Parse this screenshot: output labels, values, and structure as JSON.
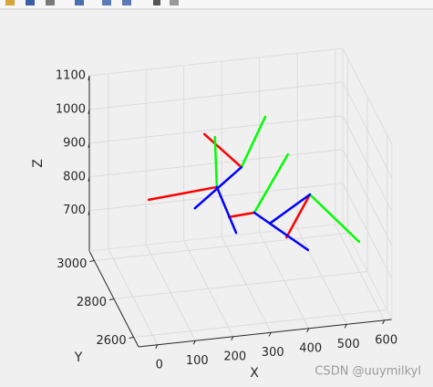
{
  "chart_data": {
    "type": "line3d",
    "xlabel": "X",
    "ylabel": "Y",
    "zlabel": "Z",
    "xlim": [
      -50,
      620
    ],
    "ylim": [
      2550,
      3050
    ],
    "zlim": [
      580,
      1100
    ],
    "xticks": [
      0,
      100,
      200,
      300,
      400,
      500,
      600
    ],
    "yticks": [
      2600,
      2800,
      3000
    ],
    "zticks": [
      700,
      800,
      900,
      1000,
      1100
    ],
    "grid": true,
    "series": [
      {
        "color": "#ff0000",
        "x": [
          287,
          189,
          null,
          222,
          42,
          null,
          321,
          254,
          null,
          468,
          406
        ],
        "y": [
          2800,
          2800,
          null,
          2800,
          2800,
          null,
          2800,
          2800,
          null,
          2800,
          2800
        ],
        "z": [
          930,
          1040,
          null,
          879,
          863,
          null,
          791,
          786,
          null,
          827,
          707
        ]
      },
      {
        "color": "#00ff00",
        "x": [
          287,
          350,
          null,
          222,
          217,
          null,
          321,
          410,
          null,
          468,
          598
        ],
        "y": [
          2800,
          2800,
          null,
          2800,
          2800,
          null,
          2800,
          2800,
          null,
          2800,
          2800
        ],
        "z": [
          930,
          1072,
          null,
          879,
          1028,
          null,
          791,
          953,
          null,
          827,
          671
        ]
      },
      {
        "color": "#0000ff",
        "x": [
          287,
          164,
          null,
          222,
          273,
          null,
          321,
          463,
          null,
          468,
          365
        ],
        "y": [
          2800,
          2800,
          null,
          2800,
          2800,
          null,
          2800,
          2800,
          null,
          2800,
          2800
        ],
        "z": [
          930,
          823,
          null,
          879,
          737,
          null,
          791,
          663,
          null,
          827,
          756
        ]
      }
    ]
  },
  "watermark": "CSDN @uuymilkyl"
}
